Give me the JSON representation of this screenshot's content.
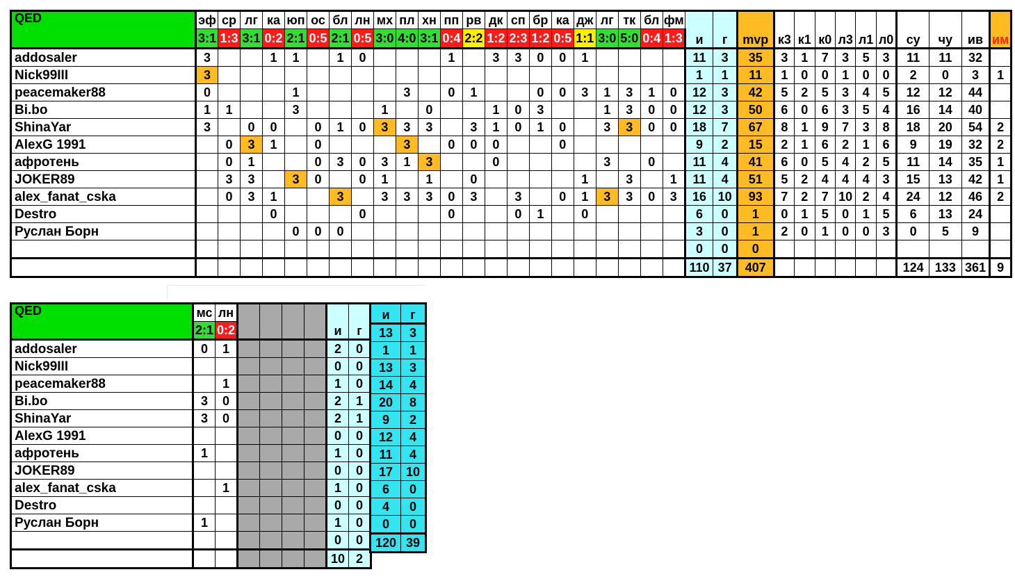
{
  "table1": {
    "team": "QED",
    "opponents": [
      "эф",
      "ср",
      "лг",
      "ка",
      "юп",
      "ос",
      "бл",
      "лн",
      "мх",
      "пл",
      "хн",
      "пп",
      "рв",
      "дк",
      "сп",
      "бр",
      "ка",
      "дж",
      "лг",
      "тк",
      "бл",
      "фм"
    ],
    "scores": [
      "3:1",
      "1:3",
      "3:1",
      "0:2",
      "2:1",
      "0:5",
      "2:1",
      "0:5",
      "3:0",
      "4:0",
      "3:1",
      "0:4",
      "2:2",
      "1:2",
      "2:3",
      "1:2",
      "0:5",
      "1:1",
      "3:0",
      "5:0",
      "0:4",
      "1:3"
    ],
    "score_results": [
      "w",
      "l",
      "w",
      "l",
      "w",
      "l",
      "w",
      "l",
      "w",
      "w",
      "w",
      "l",
      "d",
      "l",
      "l",
      "l",
      "l",
      "d",
      "w",
      "w",
      "l",
      "l"
    ],
    "stat_headers": [
      "и",
      "г",
      "mvp",
      "к3",
      "к1",
      "к0",
      "л3",
      "л1",
      "л0",
      "су",
      "чу",
      "ив",
      "им"
    ],
    "rows": [
      {
        "name": "addosaler",
        "cells": [
          "3",
          "",
          "",
          "1",
          "1",
          "",
          "1",
          "0",
          "",
          "",
          "",
          "1",
          "",
          "3",
          "3",
          "0",
          "0",
          "1",
          "",
          "",
          "",
          ""
        ],
        "hl": [],
        "stats": [
          "11",
          "3",
          "35",
          "3",
          "1",
          "7",
          "3",
          "5",
          "3",
          "11",
          "11",
          "32",
          ""
        ]
      },
      {
        "name": "Nick99III",
        "cells": [
          "3",
          "",
          "",
          "",
          "",
          "",
          "",
          "",
          "",
          "",
          "",
          "",
          "",
          "",
          "",
          "",
          "",
          "",
          "",
          "",
          "",
          ""
        ],
        "hl": [
          0
        ],
        "stats": [
          "1",
          "1",
          "11",
          "1",
          "0",
          "0",
          "1",
          "0",
          "0",
          "2",
          "0",
          "3",
          "1"
        ]
      },
      {
        "name": "peacemaker88",
        "cells": [
          "0",
          "",
          "",
          "",
          "1",
          "",
          "",
          "",
          "",
          "3",
          "",
          "0",
          "1",
          "",
          "",
          "0",
          "0",
          "3",
          "1",
          "3",
          "1",
          "0"
        ],
        "hl": [],
        "stats": [
          "12",
          "3",
          "42",
          "5",
          "2",
          "5",
          "3",
          "4",
          "5",
          "12",
          "12",
          "44",
          ""
        ]
      },
      {
        "name": "Bi.bo",
        "cells": [
          "1",
          "1",
          "",
          "",
          "3",
          "",
          "",
          "",
          "1",
          "",
          "0",
          "",
          "",
          "1",
          "0",
          "3",
          "",
          "",
          "1",
          "3",
          "0",
          "0"
        ],
        "hl": [],
        "stats": [
          "12",
          "3",
          "50",
          "6",
          "0",
          "6",
          "3",
          "5",
          "4",
          "16",
          "14",
          "40",
          ""
        ]
      },
      {
        "name": "ShinaYar",
        "cells": [
          "3",
          "",
          "0",
          "0",
          "",
          "0",
          "1",
          "0",
          "3",
          "3",
          "3",
          "",
          "3",
          "1",
          "0",
          "1",
          "0",
          "",
          "3",
          "3",
          "0",
          "0"
        ],
        "hl": [
          8,
          19
        ],
        "stats": [
          "18",
          "7",
          "67",
          "8",
          "1",
          "9",
          "7",
          "3",
          "8",
          "18",
          "20",
          "54",
          "2"
        ]
      },
      {
        "name": "AlexG 1991",
        "cells": [
          "",
          "0",
          "3",
          "1",
          "",
          "0",
          "",
          "",
          "",
          "3",
          "",
          "0",
          "0",
          "0",
          "",
          "",
          "0",
          "",
          "",
          "",
          "",
          ""
        ],
        "hl": [
          2,
          9
        ],
        "stats": [
          "9",
          "2",
          "15",
          "2",
          "1",
          "6",
          "2",
          "1",
          "6",
          "9",
          "19",
          "32",
          "2"
        ]
      },
      {
        "name": "афротень",
        "cells": [
          "",
          "0",
          "1",
          "",
          "",
          "0",
          "3",
          "0",
          "3",
          "1",
          "3",
          "",
          "",
          "0",
          "",
          "",
          "",
          "",
          "3",
          "",
          "0",
          ""
        ],
        "hl": [
          10
        ],
        "stats": [
          "11",
          "4",
          "41",
          "6",
          "0",
          "5",
          "4",
          "2",
          "5",
          "11",
          "14",
          "35",
          "1"
        ]
      },
      {
        "name": "JOKER89",
        "cells": [
          "",
          "3",
          "3",
          "",
          "3",
          "0",
          "",
          "0",
          "1",
          "",
          "1",
          "",
          "0",
          "",
          "",
          "",
          "",
          "1",
          "",
          "3",
          "",
          "1"
        ],
        "hl": [
          4
        ],
        "stats": [
          "11",
          "4",
          "51",
          "5",
          "2",
          "4",
          "4",
          "4",
          "3",
          "15",
          "13",
          "42",
          "1"
        ]
      },
      {
        "name": "alex_fanat_cska",
        "cells": [
          "",
          "0",
          "3",
          "1",
          "",
          "",
          "3",
          "",
          "3",
          "3",
          "3",
          "0",
          "3",
          "",
          "3",
          "",
          "0",
          "1",
          "3",
          "3",
          "0",
          "3"
        ],
        "hl": [
          6,
          18
        ],
        "stats": [
          "16",
          "10",
          "93",
          "7",
          "2",
          "7",
          "10",
          "2",
          "4",
          "24",
          "12",
          "46",
          "2"
        ]
      },
      {
        "name": "Destro",
        "cells": [
          "",
          "",
          "",
          "0",
          "",
          "",
          "",
          "0",
          "",
          "",
          "",
          "0",
          "",
          "",
          "0",
          "1",
          "",
          "0",
          "",
          "",
          "",
          ""
        ],
        "hl": [],
        "stats": [
          "6",
          "0",
          "1",
          "0",
          "1",
          "5",
          "0",
          "1",
          "5",
          "6",
          "13",
          "24",
          ""
        ]
      },
      {
        "name": "Руслан Борн",
        "cells": [
          "",
          "",
          "",
          "",
          "0",
          "0",
          "0",
          "",
          "",
          "",
          "",
          "",
          "",
          "",
          "",
          "",
          "",
          "",
          "",
          "",
          "",
          ""
        ],
        "hl": [],
        "stats": [
          "3",
          "0",
          "1",
          "2",
          "0",
          "1",
          "0",
          "0",
          "3",
          "0",
          "5",
          "9",
          ""
        ]
      },
      {
        "name": "",
        "cells": [
          "",
          "",
          "",
          "",
          "",
          "",
          "",
          "",
          "",
          "",
          "",
          "",
          "",
          "",
          "",
          "",
          "",
          "",
          "",
          "",
          "",
          ""
        ],
        "hl": [],
        "stats": [
          "0",
          "0",
          "0",
          "",
          "",
          "",
          "",
          "",
          "",
          "",
          "",
          "",
          ""
        ]
      }
    ],
    "totals": [
      "110",
      "37",
      "407",
      "",
      "",
      "",
      "",
      "",
      "",
      "124",
      "133",
      "361",
      "9"
    ]
  },
  "table2": {
    "team": "QED",
    "opponents": [
      "мс",
      "лн"
    ],
    "scores": [
      "2:1",
      "0:2"
    ],
    "score_results": [
      "w",
      "l"
    ],
    "stat_headers": [
      "и",
      "г"
    ],
    "rows": [
      {
        "name": "addosaler",
        "cells": [
          "0",
          "1"
        ],
        "stats": [
          "2",
          "0"
        ],
        "season": [
          "13",
          "3"
        ]
      },
      {
        "name": "Nick99III",
        "cells": [
          "",
          ""
        ],
        "stats": [
          "0",
          "0"
        ],
        "season": [
          "1",
          "1"
        ]
      },
      {
        "name": "peacemaker88",
        "cells": [
          "",
          "1"
        ],
        "stats": [
          "1",
          "0"
        ],
        "season": [
          "13",
          "3"
        ]
      },
      {
        "name": "Bi.bo",
        "cells": [
          "3",
          "0"
        ],
        "stats": [
          "2",
          "1"
        ],
        "season": [
          "14",
          "4"
        ]
      },
      {
        "name": "ShinaYar",
        "cells": [
          "3",
          "0"
        ],
        "stats": [
          "2",
          "1"
        ],
        "season": [
          "20",
          "8"
        ]
      },
      {
        "name": "AlexG 1991",
        "cells": [
          "",
          ""
        ],
        "stats": [
          "0",
          "0"
        ],
        "season": [
          "9",
          "2"
        ]
      },
      {
        "name": "афротень",
        "cells": [
          "1",
          ""
        ],
        "stats": [
          "1",
          "0"
        ],
        "season": [
          "12",
          "4"
        ]
      },
      {
        "name": "JOKER89",
        "cells": [
          "",
          ""
        ],
        "stats": [
          "0",
          "0"
        ],
        "season": [
          "11",
          "4"
        ]
      },
      {
        "name": "alex_fanat_cska",
        "cells": [
          "",
          "1"
        ],
        "stats": [
          "1",
          "0"
        ],
        "season": [
          "17",
          "10"
        ]
      },
      {
        "name": "Destro",
        "cells": [
          "",
          ""
        ],
        "stats": [
          "0",
          "0"
        ],
        "season": [
          "6",
          "0"
        ]
      },
      {
        "name": "Руслан Борн",
        "cells": [
          "1",
          ""
        ],
        "stats": [
          "1",
          "0"
        ],
        "season": [
          "4",
          "0"
        ]
      },
      {
        "name": "",
        "cells": [
          "",
          ""
        ],
        "stats": [
          "0",
          "0"
        ],
        "season": [
          "0",
          "0"
        ]
      }
    ],
    "totals": [
      "10",
      "2"
    ],
    "season_totals": [
      "120",
      "39"
    ]
  },
  "colors": {
    "win": "#33dd33",
    "loss": "#ff1a1a",
    "draw": "#ffee00",
    "mvp": "#ffbb22",
    "stats": "#ccffff",
    "season": "#33e5f0",
    "blank": "#a9a9a9",
    "team": "#00e000"
  }
}
